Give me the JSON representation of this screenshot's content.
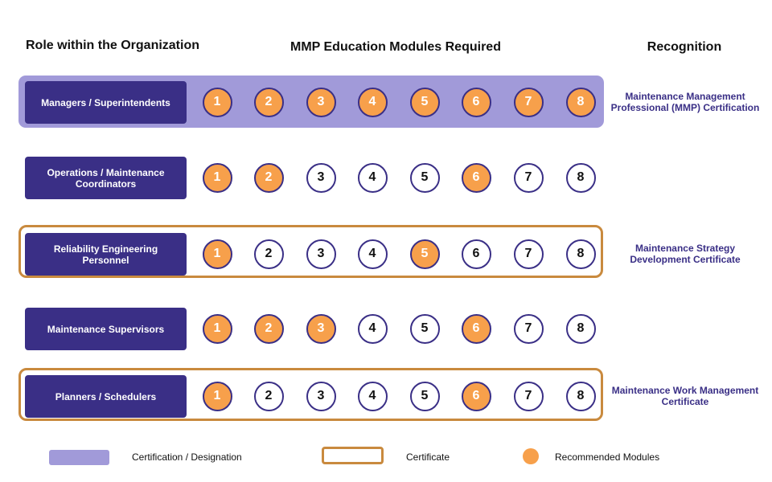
{
  "headers": {
    "role": "Role within the Organization",
    "modules": "MMP Education Modules Required",
    "recognition": "Recognition"
  },
  "rows": [
    {
      "role": "Managers / Superintendents",
      "modules": [
        1,
        2,
        3,
        4,
        5,
        6,
        7,
        8
      ],
      "recommended": [
        1,
        2,
        3,
        4,
        5,
        6,
        7,
        8
      ],
      "recognition": "Maintenance Management Professional (MMP) Certification",
      "recognition_type": "certification"
    },
    {
      "role": "Operations / Maintenance Coordinators",
      "modules": [
        1,
        2,
        3,
        4,
        5,
        6,
        7,
        8
      ],
      "recommended": [
        1,
        2,
        6
      ],
      "recognition": "",
      "recognition_type": "none"
    },
    {
      "role": "Reliability Engineering Personnel",
      "modules": [
        1,
        2,
        3,
        4,
        5,
        6,
        7,
        8
      ],
      "recommended": [
        1,
        5
      ],
      "recognition": "Maintenance Strategy Development Certificate",
      "recognition_type": "certificate"
    },
    {
      "role": "Maintenance Supervisors",
      "modules": [
        1,
        2,
        3,
        4,
        5,
        6,
        7,
        8
      ],
      "recommended": [
        1,
        2,
        3,
        6
      ],
      "recognition": "",
      "recognition_type": "none"
    },
    {
      "role": "Planners / Schedulers",
      "modules": [
        1,
        2,
        3,
        4,
        5,
        6,
        7,
        8
      ],
      "recommended": [
        1,
        6
      ],
      "recognition": "Maintenance Work Management Certificate",
      "recognition_type": "certificate"
    }
  ],
  "legend": {
    "certification": "Certification / Designation",
    "certificate": "Certificate",
    "recommended": "Recommended Modules"
  },
  "colors": {
    "role_box": "#3a2f86",
    "certification_band": "#a19ad9",
    "certificate_frame": "#c98a3e",
    "recommended_fill": "#f7a04b",
    "recognition_text": "#3a2f86"
  }
}
